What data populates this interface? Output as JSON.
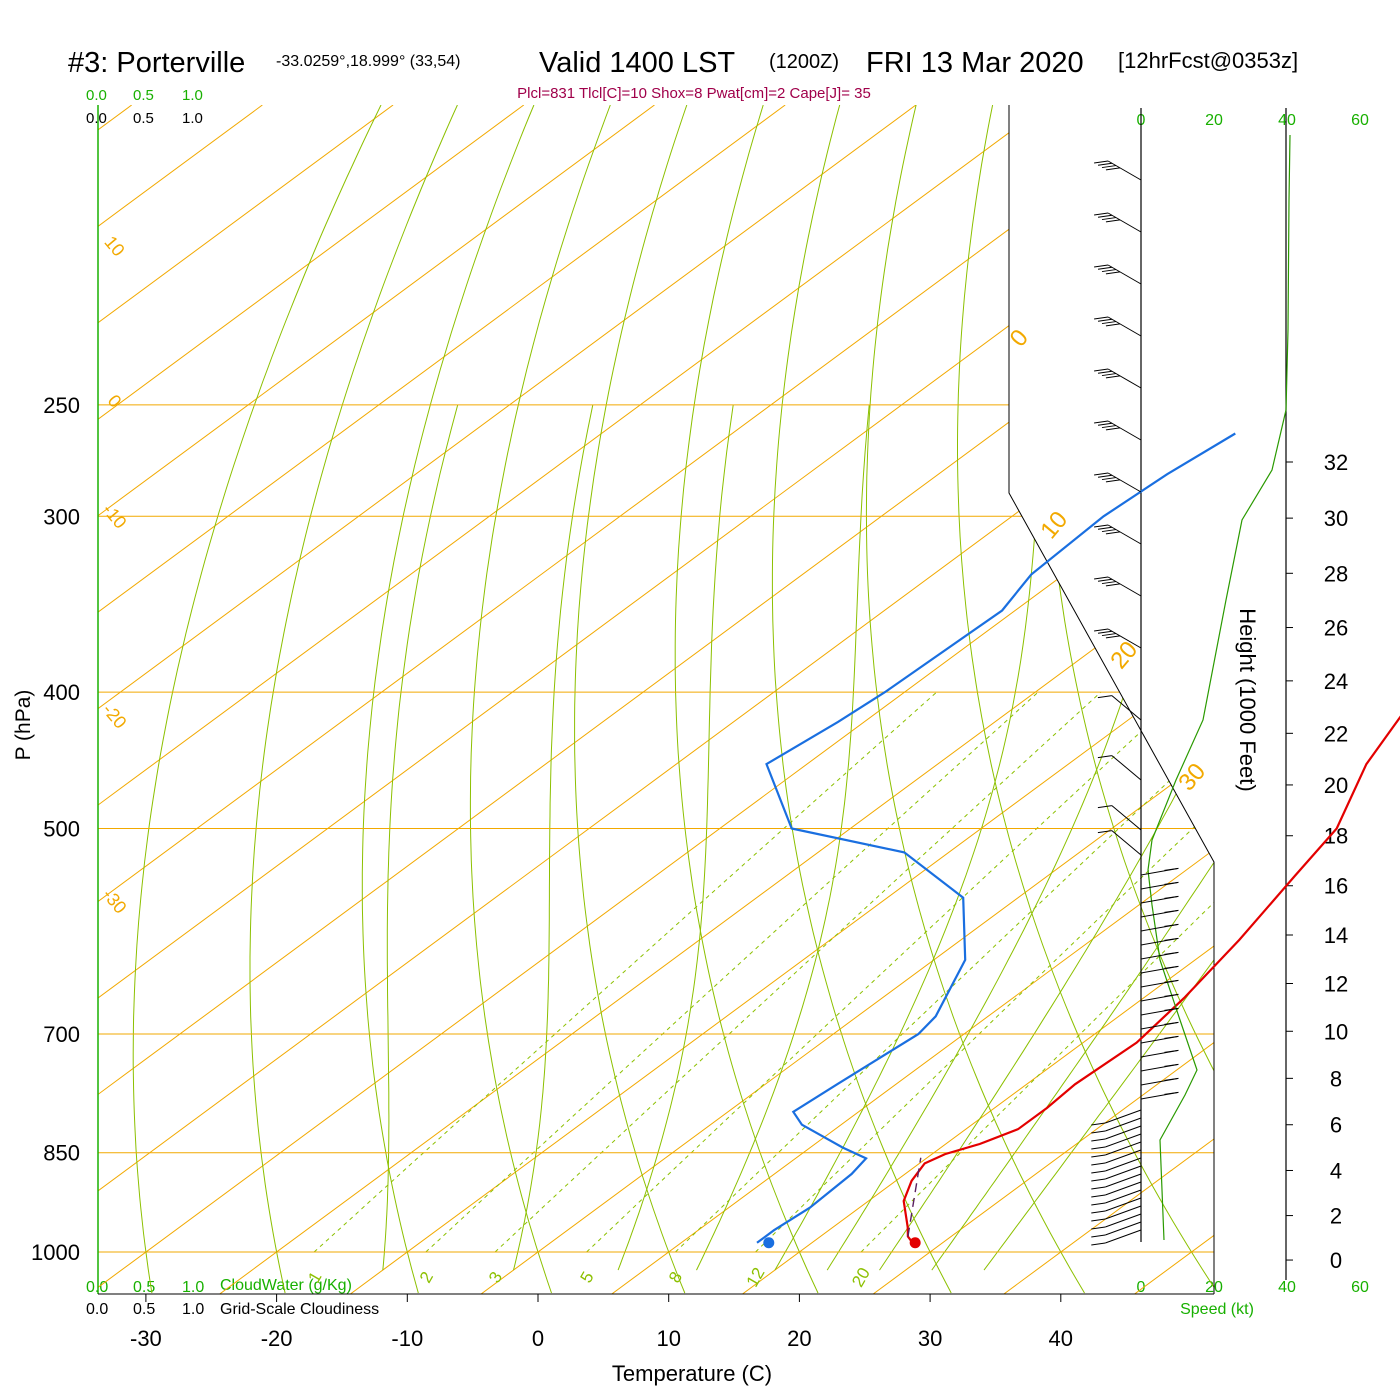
{
  "header": {
    "station": "#3: Porterville",
    "coords": "-33.0259°,18.999° (33,54)",
    "valid": "Valid 1400 LST",
    "zulu": "(1200Z)",
    "date": "FRI 13 Mar 2020",
    "forecast": "[12hrFcst@0353z]"
  },
  "indices_line": "Plcl=831 Tlcl[C]=10 Shox=8 Pwat[cm]=2 Cape[J]= 35",
  "colors": {
    "isotherm": "#f2a900",
    "dry_adiabat": "#8cc000",
    "mixing_ratio": "#8cc000",
    "temperature": "#e30000",
    "dewpoint": "#1a6fe0",
    "indices": "#a0004a",
    "green_text": "#18b000",
    "height_profile": "#2a9a00"
  },
  "left_scales": {
    "top_green": [
      "0.0",
      "0.5",
      "1.0"
    ],
    "top_black": [
      "0.0",
      "0.5",
      "1.0"
    ],
    "bottom_green": [
      "0.0",
      "0.5",
      "1.0"
    ],
    "bottom_green_label": "CloudWater (g/Kg)",
    "bottom_black": [
      "0.0",
      "0.5",
      "1.0"
    ],
    "bottom_black_label": "Grid-Scale Cloudiness"
  },
  "wind_scale": {
    "top_ticks": [
      "0",
      "20",
      "40",
      "60"
    ],
    "bottom_ticks": [
      "0",
      "20",
      "40",
      "60"
    ],
    "label": "Speed (kt)"
  },
  "chart_data": {
    "type": "line",
    "title": "#3: Porterville -33.0259°,18.999° (33,54) Valid 1400 LST (1200Z) FRI 13 Mar 2020 [12hrFcst@0353z]",
    "xlabel": "Temperature (C)",
    "ylabel": "P (hPa)",
    "y2label": "Height (1000 Feet)",
    "x_ticks": [
      "-30",
      "-20",
      "-10",
      "0",
      "10",
      "20",
      "30",
      "40"
    ],
    "y_ticks": [
      "250",
      "300",
      "400",
      "500",
      "700",
      "850",
      "1000"
    ],
    "height_ticks": [
      "0",
      "2",
      "4",
      "6",
      "8",
      "10",
      "12",
      "14",
      "16",
      "18",
      "20",
      "22",
      "24",
      "26",
      "28",
      "30",
      "32"
    ],
    "isotherm_labels": [
      "10",
      "0",
      "-10",
      "-20",
      "-30",
      "0",
      "10",
      "20",
      "30"
    ],
    "mixing_ratio_labels": [
      "1",
      "2",
      "3",
      "5",
      "8",
      "12",
      "20"
    ],
    "series": [
      {
        "name": "Temperature",
        "points": [
          [
            27.7,
            985
          ],
          [
            26.7,
            975
          ],
          [
            25.7,
            960
          ],
          [
            22.7,
            920
          ],
          [
            21.2,
            890
          ],
          [
            20.4,
            865
          ],
          [
            21.0,
            852
          ],
          [
            22.6,
            838
          ],
          [
            24.0,
            818
          ],
          [
            24.0,
            790
          ],
          [
            23.7,
            760
          ],
          [
            24.1,
            710
          ],
          [
            23.1,
            660
          ],
          [
            21.3,
            600
          ],
          [
            18.9,
            540
          ],
          [
            17.2,
            500
          ],
          [
            12.8,
            450
          ],
          [
            9.3,
            400
          ],
          [
            5.8,
            350
          ],
          [
            3.1,
            310
          ],
          [
            -0.4,
            280
          ],
          [
            -2.6,
            262
          ]
        ]
      },
      {
        "name": "Dewpoint",
        "points": [
          [
            15.8,
            985
          ],
          [
            15.8,
            965
          ],
          [
            16.2,
            930
          ],
          [
            15.9,
            880
          ],
          [
            15.4,
            858
          ],
          [
            12.5,
            843
          ],
          [
            7.0,
            812
          ],
          [
            5.0,
            795
          ],
          [
            5.5,
            760
          ],
          [
            6.5,
            700
          ],
          [
            6.0,
            680
          ],
          [
            2.4,
            620
          ],
          [
            -4.2,
            560
          ],
          [
            -13.4,
            520
          ],
          [
            -24.5,
            500
          ],
          [
            -33.1,
            450
          ],
          [
            -32.0,
            420
          ],
          [
            -31.5,
            400
          ],
          [
            -31.0,
            350
          ],
          [
            -32.5,
            330
          ],
          [
            -33.0,
            300
          ],
          [
            -32.5,
            280
          ],
          [
            -31.5,
            262
          ]
        ]
      }
    ],
    "surface_temperature": 27.9,
    "surface_dewpoint": 16.7,
    "xlim": [
      -35,
      45
    ],
    "plim": [
      250,
      1030
    ]
  }
}
